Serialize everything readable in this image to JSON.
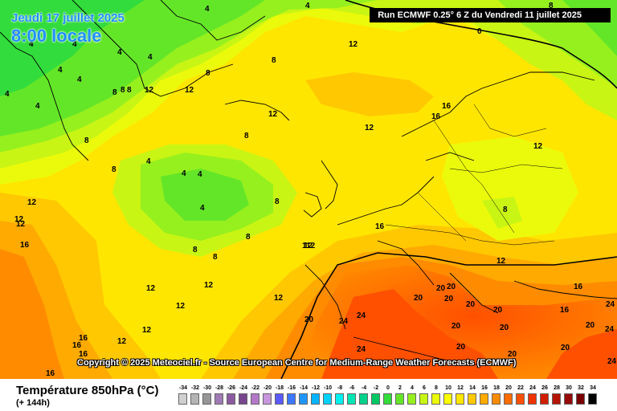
{
  "header": {
    "date_line": "Jeudi 17 juillet 2025",
    "time_line": "8:00 locale",
    "run_info": "Run ECMWF 0.25° 6 Z du Vendredi 11 juillet 2025"
  },
  "copyright": "Copyright © 2025 Meteociel.fr - Source European Centre for Medium-Range Weather Forecasts (ECMWF)",
  "legend": {
    "parameter": "Température 850hPa (°C)",
    "lead_time": "(+ 144h)",
    "ticks": [
      "-34",
      "-32",
      "-30",
      "-28",
      "-26",
      "-24",
      "-22",
      "-20",
      "-18",
      "-16",
      "-14",
      "-12",
      "-10",
      "-8",
      "-6",
      "-4",
      "-2",
      "0",
      "2",
      "4",
      "6",
      "8",
      "10",
      "12",
      "14",
      "16",
      "18",
      "20",
      "22",
      "24",
      "26",
      "28",
      "30",
      "32",
      "34"
    ],
    "colors": [
      "#d0d0d0",
      "#b4b4b4",
      "#969696",
      "#a07ab4",
      "#8c5aa0",
      "#78468c",
      "#b478c8",
      "#c896dc",
      "#5a5aff",
      "#3c78ff",
      "#1e96ff",
      "#00b4ff",
      "#00d2ff",
      "#00f0f0",
      "#00e6b4",
      "#00d28c",
      "#00c864",
      "#32dc3c",
      "#64e628",
      "#96f01e",
      "#c8f514",
      "#ebfa0a",
      "#ffff00",
      "#ffe600",
      "#ffc800",
      "#ffaa00",
      "#ff8c00",
      "#ff6e00",
      "#ff5000",
      "#f03200",
      "#d21e00",
      "#b41400",
      "#960a0a",
      "#780000",
      "#000000"
    ]
  },
  "map_labels": [
    {
      "t": "4"
    },
    {
      "t": "4"
    },
    {
      "t": "8"
    },
    {
      "t": "0"
    },
    {
      "t": "4"
    },
    {
      "t": "4"
    },
    {
      "t": "4"
    },
    {
      "t": "4"
    },
    {
      "t": "4"
    },
    {
      "t": "12"
    },
    {
      "t": "8"
    },
    {
      "t": "8"
    },
    {
      "t": "12"
    },
    {
      "t": "12"
    },
    {
      "t": "8"
    },
    {
      "t": "4"
    },
    {
      "t": "4"
    },
    {
      "t": "8"
    },
    {
      "t": "8"
    },
    {
      "t": "4"
    },
    {
      "t": "4"
    },
    {
      "t": "12"
    },
    {
      "t": "8"
    },
    {
      "t": "12"
    },
    {
      "t": "12"
    },
    {
      "t": "16"
    },
    {
      "t": "16"
    },
    {
      "t": "12"
    },
    {
      "t": "4"
    },
    {
      "t": "8"
    },
    {
      "t": "8"
    },
    {
      "t": "4"
    },
    {
      "t": "4"
    },
    {
      "t": "4"
    },
    {
      "t": "8"
    },
    {
      "t": "8"
    },
    {
      "t": "12"
    },
    {
      "t": "12"
    },
    {
      "t": "16"
    },
    {
      "t": "8"
    },
    {
      "t": "8"
    },
    {
      "t": "8"
    },
    {
      "t": "16"
    },
    {
      "t": "112"
    },
    {
      "t": "12"
    },
    {
      "t": "12"
    },
    {
      "t": "12"
    },
    {
      "t": "12"
    },
    {
      "t": "12"
    },
    {
      "t": "12"
    },
    {
      "t": "12"
    },
    {
      "t": "12"
    },
    {
      "t": "16"
    },
    {
      "t": "16"
    },
    {
      "t": "16"
    },
    {
      "t": "16"
    },
    {
      "t": "16"
    },
    {
      "t": "20"
    },
    {
      "t": "24"
    },
    {
      "t": "24"
    },
    {
      "t": "24"
    },
    {
      "t": "20"
    },
    {
      "t": "20"
    },
    {
      "t": "20"
    },
    {
      "t": "20"
    },
    {
      "t": "20"
    },
    {
      "t": "20"
    },
    {
      "t": "20"
    },
    {
      "t": "20"
    },
    {
      "t": "20"
    },
    {
      "t": "20"
    },
    {
      "t": "16"
    },
    {
      "t": "24"
    },
    {
      "t": "24"
    },
    {
      "t": "20"
    },
    {
      "t": "20"
    },
    {
      "t": "24"
    }
  ]
}
